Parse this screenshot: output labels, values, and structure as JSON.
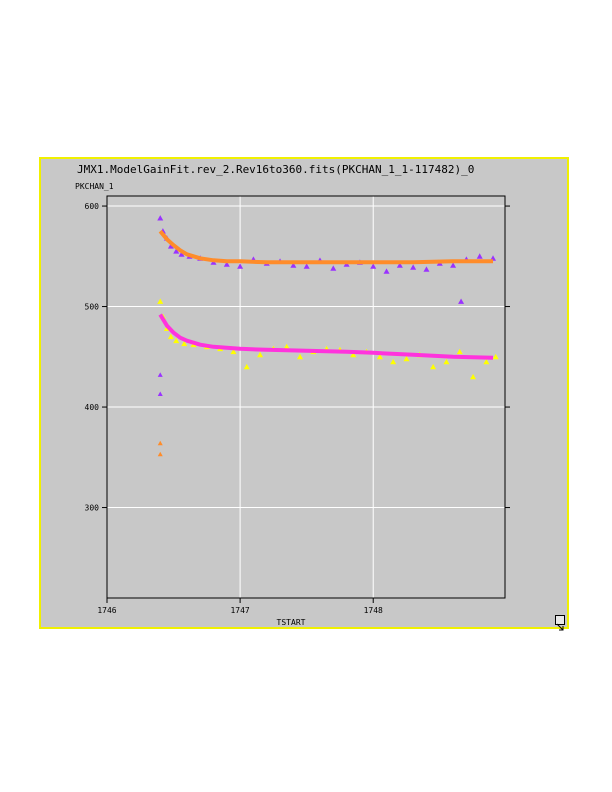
{
  "window": {
    "title": "JMX1.ModelGainFit.rev_2.Rev16to360.fits(PKCHAN_1_1-117482)_0",
    "resize_icon": "resize-arrow-icon"
  },
  "chart_data": {
    "type": "scatter",
    "title": "JMX1.ModelGainFit.rev_2.Rev16to360.fits(PKCHAN_1_1-117482)_0",
    "xlabel": "TSTART",
    "ylabel": "PKCHAN_1",
    "xlim": [
      1746,
      1748.99
    ],
    "ylim": [
      210,
      610
    ],
    "x_ticks": [
      1746,
      1747,
      1748
    ],
    "x_tick_labels": [
      "1746",
      "1747",
      "1748"
    ],
    "y_ticks": [
      300,
      400,
      500,
      600
    ],
    "y_tick_labels": [
      "300",
      "400",
      "500",
      "600"
    ],
    "grid": true,
    "colors": {
      "frame_border": "#f0f000",
      "panel": "#c8c8c8",
      "grid": "#ffffff",
      "upper_points": "#9a33ff",
      "upper_fit": "#ff8c2a",
      "lower_points": "#ffff00",
      "lower_fit": "#ff33dd"
    },
    "series": [
      {
        "kind": "points",
        "color": "#9a33ff",
        "x": [
          1746.4,
          1746.42,
          1746.45,
          1746.48,
          1746.52,
          1746.56,
          1746.62,
          1746.7,
          1746.8,
          1746.9,
          1747.0,
          1747.1,
          1747.2,
          1747.3,
          1747.4,
          1747.5,
          1747.6,
          1747.7,
          1747.8,
          1747.9,
          1748.0,
          1748.1,
          1748.2,
          1748.3,
          1748.4,
          1748.5,
          1748.6,
          1748.66,
          1748.7,
          1748.8,
          1748.9
        ],
        "y": [
          588,
          575,
          568,
          560,
          555,
          552,
          550,
          548,
          544,
          542,
          540,
          547,
          543,
          545,
          541,
          540,
          546,
          538,
          542,
          544,
          540,
          535,
          541,
          539,
          537,
          543,
          541,
          505,
          547,
          550,
          548
        ]
      },
      {
        "kind": "fit",
        "color": "#ff8c2a",
        "x": [
          1746.4,
          1746.45,
          1746.5,
          1746.55,
          1746.6,
          1746.7,
          1746.8,
          1746.9,
          1747.0,
          1747.2,
          1747.5,
          1747.8,
          1748.0,
          1748.3,
          1748.6,
          1748.9
        ],
        "y": [
          575,
          567,
          561,
          556,
          552,
          548,
          546,
          545,
          545,
          544,
          544,
          544,
          544,
          544,
          545,
          545
        ]
      },
      {
        "kind": "points",
        "color": "#ffff00",
        "x": [
          1746.4,
          1746.42,
          1746.45,
          1746.48,
          1746.52,
          1746.58,
          1746.65,
          1746.75,
          1746.85,
          1746.95,
          1747.05,
          1747.15,
          1747.25,
          1747.35,
          1747.45,
          1747.55,
          1747.65,
          1747.75,
          1747.85,
          1747.95,
          1748.05,
          1748.15,
          1748.25,
          1748.35,
          1748.45,
          1748.55,
          1748.65,
          1748.75,
          1748.85,
          1748.92
        ],
        "y": [
          505,
          490,
          478,
          470,
          466,
          463,
          462,
          460,
          458,
          455,
          440,
          452,
          458,
          460,
          450,
          455,
          458,
          457,
          452,
          455,
          450,
          445,
          448,
          452,
          440,
          445,
          455,
          430,
          445,
          450
        ]
      },
      {
        "kind": "fit",
        "color": "#ff33dd",
        "x": [
          1746.4,
          1746.45,
          1746.5,
          1746.55,
          1746.6,
          1746.7,
          1746.8,
          1746.9,
          1747.0,
          1747.2,
          1747.5,
          1747.8,
          1748.0,
          1748.3,
          1748.6,
          1748.9
        ],
        "y": [
          492,
          481,
          474,
          469,
          466,
          462,
          460,
          459,
          458,
          457,
          456,
          455,
          454,
          452,
          450,
          449
        ]
      },
      {
        "kind": "outliers",
        "color": "#9a33ff",
        "x": [
          1746.4,
          1746.4
        ],
        "y": [
          432,
          413
        ]
      },
      {
        "kind": "outliers",
        "color": "#ff8c2a",
        "x": [
          1746.4,
          1746.4
        ],
        "y": [
          364,
          353
        ]
      }
    ]
  }
}
